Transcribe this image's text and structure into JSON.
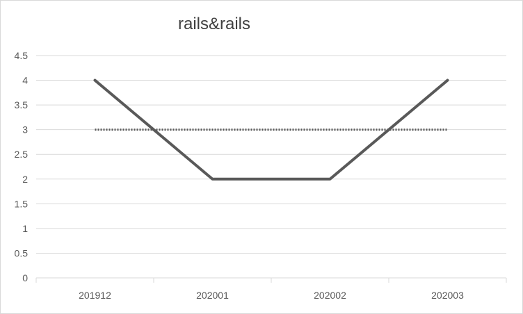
{
  "chart_data": {
    "type": "line",
    "title": "rails&rails",
    "categories": [
      "201912",
      "202001",
      "202002",
      "202003"
    ],
    "series": [
      {
        "values": [
          4,
          2,
          2,
          4
        ],
        "color": "#595959",
        "style": "solid"
      },
      {
        "values": [
          3,
          3,
          3,
          3
        ],
        "color": "#595959",
        "style": "dotted"
      }
    ],
    "ylim": [
      0,
      4.5
    ],
    "yticks": [
      0,
      0.5,
      1,
      1.5,
      2,
      2.5,
      3,
      3.5,
      4,
      4.5
    ],
    "ytick_labels": [
      "0",
      "0.5",
      "1",
      "1.5",
      "2",
      "2.5",
      "3",
      "3.5",
      "4",
      "4.5"
    ],
    "grid": true,
    "legend": "none",
    "gridline_color": "#d9d9d9"
  }
}
